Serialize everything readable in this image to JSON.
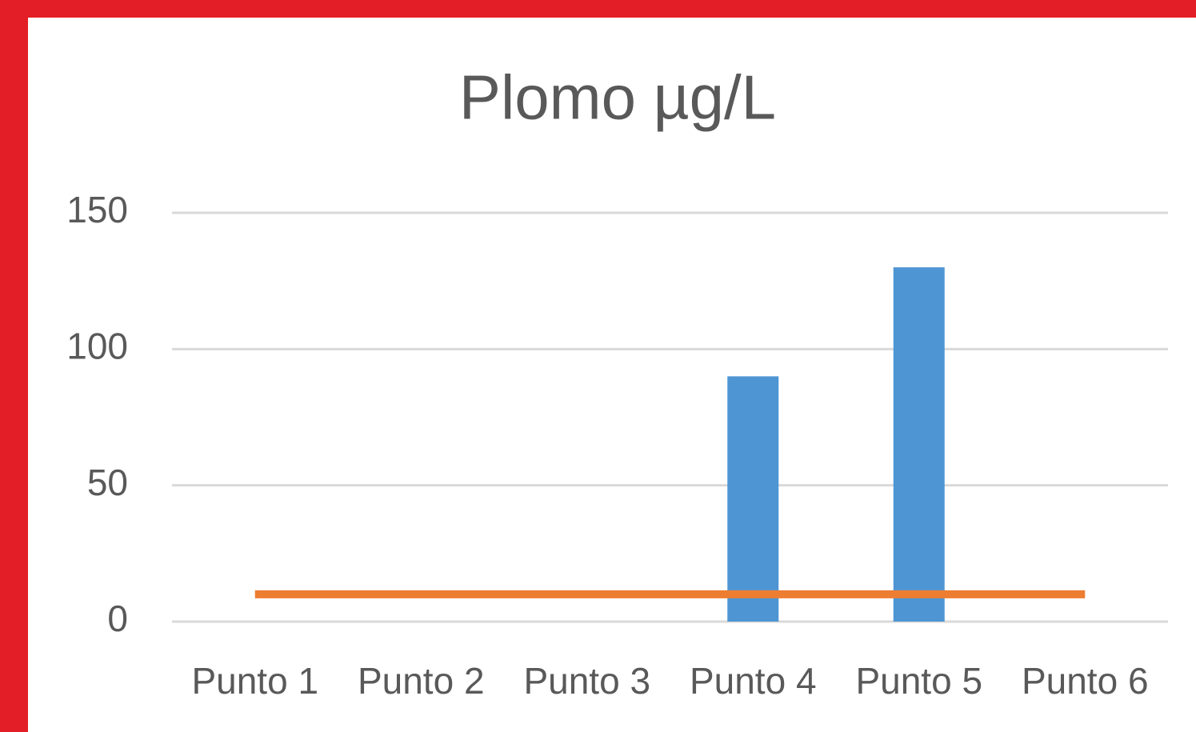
{
  "chart_data": {
    "type": "bar",
    "title": "Plomo µg/L",
    "categories": [
      "Punto 1",
      "Punto 2",
      "Punto 3",
      "Punto 4",
      "Punto 5",
      "Punto 6"
    ],
    "series": [
      {
        "type": "bar",
        "color": "#4e95d3",
        "values": [
          0,
          0,
          0,
          90,
          130,
          0
        ]
      },
      {
        "type": "line",
        "color": "#ed7d31",
        "values": [
          10,
          10,
          10,
          10,
          10,
          10
        ]
      }
    ],
    "ylim": [
      0,
      150
    ],
    "yticks": [
      0,
      50,
      100,
      150
    ],
    "grid": true
  }
}
